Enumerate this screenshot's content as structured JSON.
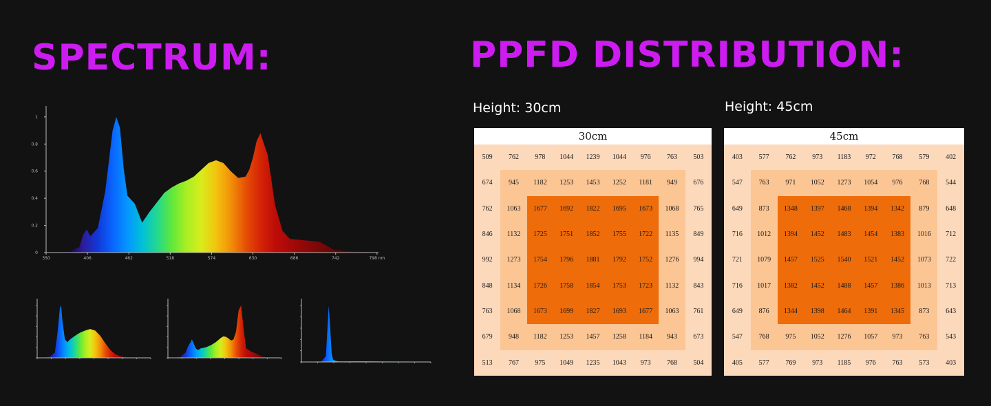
{
  "spectrum_heading": "SPECTRUM:",
  "ppfd_heading": "PPFD DISTRIBUTION:",
  "colors": {
    "heading": "#cc1cf0",
    "zone_outer": "#fdd9bb",
    "zone_middle": "#fbc594",
    "zone_inner": "#ee6c0a",
    "background": "#121212"
  },
  "chart_data": [
    {
      "type": "area",
      "xlabel": "nm",
      "xlim": [
        350,
        800
      ],
      "ylim": [
        0,
        1.05
      ],
      "x_ticks": [
        350,
        406,
        462,
        518,
        574,
        630,
        686,
        742,
        798
      ],
      "x_tick_labels": [
        "350",
        "406",
        "462",
        "518",
        "574",
        "630",
        "686",
        "742",
        "798 nm"
      ],
      "y_ticks": [
        0,
        0.2,
        0.4,
        0.6,
        0.8,
        1
      ],
      "y_tick_labels": [
        "0",
        "0.2",
        "0.4",
        "0.6",
        "0.8",
        "1"
      ],
      "x": [
        350,
        380,
        395,
        400,
        405,
        410,
        420,
        430,
        440,
        445,
        450,
        455,
        460,
        470,
        480,
        490,
        500,
        510,
        520,
        530,
        540,
        550,
        560,
        570,
        580,
        590,
        600,
        610,
        620,
        625,
        630,
        635,
        640,
        650,
        660,
        670,
        680,
        700,
        720,
        730,
        740,
        760,
        780,
        800
      ],
      "values": [
        0,
        0.005,
        0.04,
        0.13,
        0.17,
        0.12,
        0.18,
        0.45,
        0.9,
        1.0,
        0.92,
        0.62,
        0.42,
        0.36,
        0.22,
        0.3,
        0.37,
        0.44,
        0.48,
        0.51,
        0.53,
        0.56,
        0.61,
        0.66,
        0.68,
        0.66,
        0.6,
        0.55,
        0.56,
        0.61,
        0.7,
        0.82,
        0.88,
        0.72,
        0.35,
        0.16,
        0.1,
        0.09,
        0.08,
        0.05,
        0.02,
        0.01,
        0.005,
        0
      ]
    },
    {
      "type": "area",
      "xlim": [
        350,
        800
      ],
      "ylim": [
        0,
        1.05
      ],
      "x": [
        350,
        400,
        420,
        430,
        440,
        445,
        450,
        460,
        470,
        480,
        500,
        520,
        540,
        560,
        580,
        600,
        620,
        640,
        660,
        680,
        700,
        720,
        740,
        760,
        800
      ],
      "values": [
        0,
        0.02,
        0.1,
        0.45,
        0.95,
        1.0,
        0.7,
        0.35,
        0.3,
        0.35,
        0.42,
        0.48,
        0.52,
        0.55,
        0.52,
        0.42,
        0.28,
        0.15,
        0.07,
        0.03,
        0.01,
        0.01,
        0.005,
        0.002,
        0
      ]
    },
    {
      "type": "area",
      "xlim": [
        350,
        800
      ],
      "ylim": [
        0,
        1.05
      ],
      "x": [
        350,
        400,
        420,
        430,
        440,
        445,
        450,
        460,
        470,
        480,
        500,
        520,
        540,
        560,
        570,
        580,
        590,
        600,
        610,
        620,
        630,
        640,
        650,
        660,
        680,
        700,
        720,
        740,
        760,
        800
      ],
      "values": [
        0,
        0.02,
        0.1,
        0.22,
        0.3,
        0.35,
        0.3,
        0.18,
        0.15,
        0.18,
        0.2,
        0.24,
        0.3,
        0.38,
        0.41,
        0.4,
        0.37,
        0.33,
        0.35,
        0.5,
        0.9,
        1.0,
        0.55,
        0.18,
        0.12,
        0.08,
        0.03,
        0.01,
        0.005,
        0
      ]
    },
    {
      "type": "area",
      "xlim": [
        350,
        800
      ],
      "ylim": [
        0,
        1.05
      ],
      "x": [
        350,
        420,
        435,
        440,
        445,
        450,
        455,
        460,
        470,
        480,
        500,
        550,
        600,
        650,
        700,
        750,
        800
      ],
      "values": [
        0,
        0.01,
        0.1,
        0.55,
        1.0,
        0.6,
        0.15,
        0.04,
        0.02,
        0.01,
        0.01,
        0.01,
        0.01,
        0.01,
        0.01,
        0.005,
        0
      ]
    },
    {
      "type": "heatmap",
      "title": "30cm",
      "rows": [
        [
          "509",
          "762",
          "978",
          "1044",
          "1239",
          "1044",
          "976",
          "763",
          "503"
        ],
        [
          "674",
          "945",
          "1182",
          "1253",
          "1453",
          "1252",
          "1181",
          "949",
          "676"
        ],
        [
          "762",
          "1063",
          "1677",
          "1692",
          "1822",
          "1695",
          "1673",
          "1068",
          "765"
        ],
        [
          "846",
          "1132",
          "1725",
          "1751",
          "1852",
          "1755",
          "1722",
          "1135",
          "849"
        ],
        [
          "992",
          "1273",
          "1754",
          "1796",
          "1881",
          "1792",
          "1752",
          "1276",
          "994"
        ],
        [
          "848",
          "1134",
          "1726",
          "1758",
          "1854",
          "1753",
          "1723",
          "1132",
          "843"
        ],
        [
          "763",
          "1068",
          "1673",
          "1699",
          "1827",
          "1693",
          "1677",
          "1063",
          "761"
        ],
        [
          "679",
          "948",
          "1182",
          "1253",
          "1457",
          "1258",
          "1184",
          "943",
          "673"
        ],
        [
          "513",
          "767",
          "975",
          "1049",
          "1235",
          "1043",
          "973",
          "768",
          "504"
        ]
      ]
    },
    {
      "type": "heatmap",
      "title": "45cm",
      "rows": [
        [
          "403",
          "577",
          "762",
          "973",
          "1183",
          "972",
          "768",
          "579",
          "402"
        ],
        [
          "547",
          "763",
          "971",
          "1052",
          "1273",
          "1054",
          "976",
          "768",
          "544"
        ],
        [
          "649",
          "873",
          "1348",
          "1397",
          "1468",
          "1394",
          "1342",
          "879",
          "648"
        ],
        [
          "716",
          "1012",
          "1394",
          "1452",
          "1483",
          "1454",
          "1383",
          "1016",
          "712"
        ],
        [
          "721",
          "1079",
          "1457",
          "1525",
          "1540",
          "1521",
          "1452",
          "1073",
          "722"
        ],
        [
          "716",
          "1017",
          "1382",
          "1452",
          "1488",
          "1457",
          "1386",
          "1013",
          "713"
        ],
        [
          "649",
          "876",
          "1344",
          "1398",
          "1464",
          "1391",
          "1345",
          "873",
          "643"
        ],
        [
          "547",
          "768",
          "975",
          "1052",
          "1276",
          "1057",
          "973",
          "763",
          "543"
        ],
        [
          "405",
          "577",
          "769",
          "973",
          "1185",
          "976",
          "763",
          "573",
          "403"
        ]
      ]
    }
  ],
  "ppfd": {
    "a": {
      "subtitle": "Height: 30cm",
      "title": "30cm"
    },
    "b": {
      "subtitle": "Height: 45cm",
      "title": "45cm"
    }
  }
}
